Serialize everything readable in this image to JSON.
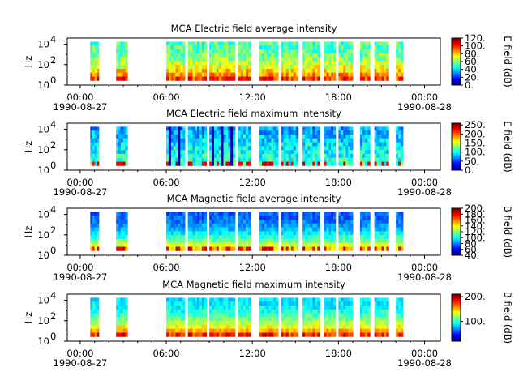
{
  "chart_data": [
    {
      "type": "heatmap",
      "title": "MCA  Electric field average intensity",
      "ylabel": "Hz",
      "y_scale": "log",
      "y_ticks": [
        {
          "base": "10",
          "exp": "0"
        },
        {
          "base": "10",
          "exp": "2"
        },
        {
          "base": "10",
          "exp": "4"
        }
      ],
      "x_ticks": [
        "00:00",
        "06:00",
        "12:00",
        "18:00",
        "00:00"
      ],
      "x_dates": {
        "start": "1990-08-27",
        "end": "1990-08-28"
      },
      "colorbar": {
        "label": "E field (dB)",
        "ticks": [
          "0.",
          "20.",
          "40.",
          "60.",
          "80.",
          "100.",
          "120."
        ],
        "range": [
          0,
          120
        ]
      },
      "data_segments_hours": [
        [
          0.7,
          1.3
        ],
        [
          2.5,
          3.3
        ],
        [
          6.0,
          7.3
        ],
        [
          7.5,
          8.8
        ],
        [
          9.0,
          10.8
        ],
        [
          11.0,
          11.9
        ],
        [
          12.5,
          13.8
        ],
        [
          14.0,
          15.2
        ],
        [
          15.5,
          16.7
        ],
        [
          17.0,
          17.8
        ],
        [
          18.0,
          19.0
        ],
        [
          19.5,
          20.2
        ],
        [
          20.5,
          21.5
        ],
        [
          22.0,
          22.5
        ]
      ],
      "base_level": 75
    },
    {
      "type": "heatmap",
      "title": "MCA  Electric field maximum intensity",
      "ylabel": "Hz",
      "y_scale": "log",
      "y_ticks": [
        {
          "base": "10",
          "exp": "0"
        },
        {
          "base": "10",
          "exp": "2"
        },
        {
          "base": "10",
          "exp": "4"
        }
      ],
      "x_ticks": [
        "00:00",
        "06:00",
        "12:00",
        "18:00",
        "00:00"
      ],
      "x_dates": {
        "start": "1990-08-27",
        "end": "1990-08-28"
      },
      "colorbar": {
        "label": "E field (dB)",
        "ticks": [
          "0.",
          "50.",
          "100.",
          "150.",
          "200.",
          "250."
        ],
        "range": [
          0,
          260
        ]
      },
      "data_segments_hours": [
        [
          0.7,
          1.3
        ],
        [
          2.5,
          3.3
        ],
        [
          6.0,
          7.3
        ],
        [
          7.5,
          8.8
        ],
        [
          9.0,
          10.8
        ],
        [
          11.0,
          11.9
        ],
        [
          12.5,
          13.8
        ],
        [
          14.0,
          15.2
        ],
        [
          15.5,
          16.7
        ],
        [
          17.0,
          17.8
        ],
        [
          18.0,
          19.0
        ],
        [
          19.5,
          20.2
        ],
        [
          20.5,
          21.5
        ],
        [
          22.0,
          22.5
        ]
      ],
      "base_level": 40
    },
    {
      "type": "heatmap",
      "title": "MCA  Magnetic field average intensity",
      "ylabel": "Hz",
      "y_scale": "log",
      "y_ticks": [
        {
          "base": "10",
          "exp": "0"
        },
        {
          "base": "10",
          "exp": "2"
        },
        {
          "base": "10",
          "exp": "4"
        }
      ],
      "x_ticks": [
        "00:00",
        "06:00",
        "12:00",
        "18:00",
        "00:00"
      ],
      "x_dates": {
        "start": "1990-08-27",
        "end": "1990-08-28"
      },
      "colorbar": {
        "label": "B field (dB)",
        "ticks": [
          "40.",
          "60.",
          "80.",
          "100.",
          "120.",
          "140.",
          "160.",
          "180.",
          "200."
        ],
        "range": [
          40,
          200
        ]
      },
      "data_segments_hours": [
        [
          0.7,
          1.3
        ],
        [
          2.5,
          3.3
        ],
        [
          6.0,
          7.3
        ],
        [
          7.5,
          8.8
        ],
        [
          9.0,
          10.8
        ],
        [
          11.0,
          11.9
        ],
        [
          12.5,
          13.8
        ],
        [
          14.0,
          15.2
        ],
        [
          15.5,
          16.7
        ],
        [
          17.0,
          17.8
        ],
        [
          18.0,
          19.0
        ],
        [
          19.5,
          20.2
        ],
        [
          20.5,
          21.5
        ],
        [
          22.0,
          22.5
        ]
      ],
      "base_level": 45
    },
    {
      "type": "heatmap",
      "title": "MCA  Magnetic field maximum intensity",
      "ylabel": "Hz",
      "y_scale": "log",
      "y_ticks": [
        {
          "base": "10",
          "exp": "0"
        },
        {
          "base": "10",
          "exp": "2"
        },
        {
          "base": "10",
          "exp": "4"
        }
      ],
      "x_ticks": [
        "00:00",
        "06:00",
        "12:00",
        "18:00",
        "00:00"
      ],
      "x_dates": {
        "start": "1990-08-27",
        "end": "1990-08-28"
      },
      "colorbar": {
        "label": "B field (dB)",
        "ticks": [
          "100.",
          "200."
        ],
        "range": [
          20,
          210
        ]
      },
      "data_segments_hours": [
        [
          0.7,
          1.3
        ],
        [
          2.5,
          3.3
        ],
        [
          6.0,
          7.3
        ],
        [
          7.5,
          8.8
        ],
        [
          9.0,
          10.8
        ],
        [
          11.0,
          11.9
        ],
        [
          12.5,
          13.8
        ],
        [
          14.0,
          15.2
        ],
        [
          15.5,
          16.7
        ],
        [
          17.0,
          17.8
        ],
        [
          18.0,
          19.0
        ],
        [
          19.5,
          20.2
        ],
        [
          20.5,
          21.5
        ],
        [
          22.0,
          22.5
        ]
      ],
      "base_level": 50
    }
  ]
}
